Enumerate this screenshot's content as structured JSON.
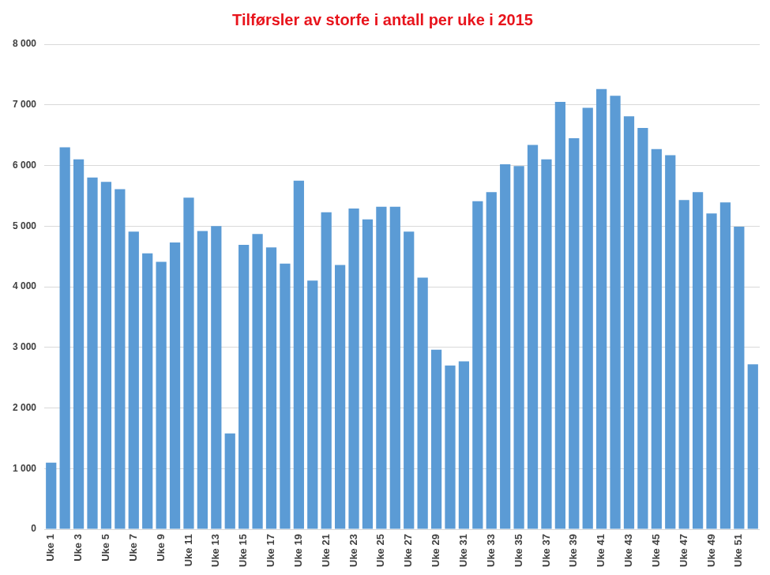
{
  "chart_data": {
    "type": "bar",
    "title": "Tilførsler av storfe i antall per uke i 2015",
    "categories": [
      "Uke 1",
      null,
      "Uke 3",
      null,
      "Uke 5",
      null,
      "Uke 7",
      null,
      "Uke 9",
      null,
      "Uke 11",
      null,
      "Uke 13",
      null,
      "Uke 15",
      null,
      "Uke 17",
      null,
      "Uke 19",
      null,
      "Uke 21",
      null,
      "Uke 23",
      null,
      "Uke 25",
      null,
      "Uke 27",
      null,
      "Uke 29",
      null,
      "Uke 31",
      null,
      "Uke 33",
      null,
      "Uke 35",
      null,
      "Uke 37",
      null,
      "Uke 39",
      null,
      "Uke 41",
      null,
      "Uke 43",
      null,
      "Uke 45",
      null,
      "Uke 47",
      null,
      "Uke 49",
      null,
      "Uke 51",
      null
    ],
    "values": [
      1100,
      6300,
      6100,
      5800,
      5730,
      5610,
      4910,
      4550,
      4410,
      4730,
      5470,
      4920,
      5000,
      1580,
      4690,
      4870,
      4650,
      4380,
      5750,
      4100,
      5230,
      4360,
      5290,
      5110,
      5320,
      5320,
      4910,
      4150,
      2960,
      2700,
      2770,
      5410,
      5560,
      6020,
      5990,
      6340,
      6100,
      7050,
      6450,
      6950,
      7260,
      7150,
      6810,
      6620,
      6270,
      6170,
      5430,
      5560,
      5210,
      5390,
      4990,
      2720
    ],
    "color": "#5b9bd5",
    "ylim": [
      0,
      8000
    ],
    "yticks": [
      0,
      {
        "value": 1000,
        "label": "1 000"
      },
      {
        "value": 2000,
        "label": "2 000"
      },
      {
        "value": 3000,
        "label": "3 000"
      },
      {
        "value": 4000,
        "label": "4 000"
      },
      {
        "value": 5000,
        "label": "5 000"
      },
      {
        "value": 6000,
        "label": "6 000"
      },
      {
        "value": 7000,
        "label": "7 000"
      },
      {
        "value": 8000,
        "label": "8 000"
      }
    ],
    "grid": true
  }
}
